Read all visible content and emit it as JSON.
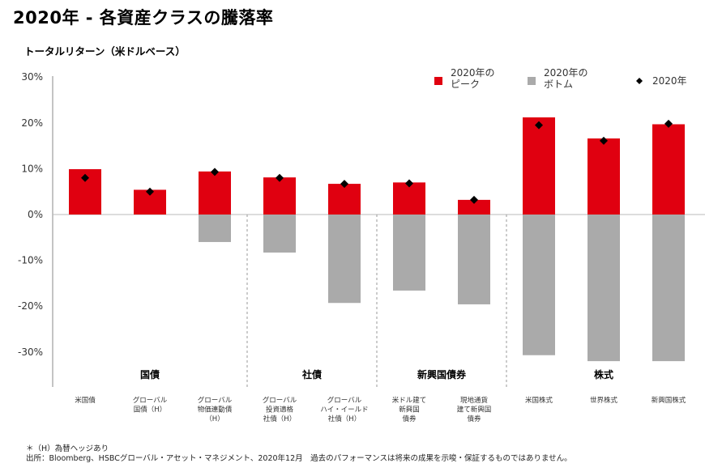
{
  "title": "2020年 - 各資産クラスの騰落率",
  "subtitle": "トータルリターン（米ドルベース）",
  "footnote": "＊（H）為替ヘッジあり",
  "source": "出所：Bloomberg、HSBCグローバル・アセット・マネジメント、2020年12月　過去のパフォーマンスは将来の成果を示唆・保証するものではありません。",
  "colors": {
    "peak": "#e00010",
    "bottom": "#aaaaaa",
    "marker": "#000000",
    "axis": "#888888",
    "divider": "#999999"
  },
  "chart_data": {
    "type": "bar",
    "ylabel": "トータルリターン（米ドルベース）",
    "ylim": [
      -0.38,
      0.3
    ],
    "yticks": [
      0.3,
      0.2,
      0.1,
      0.0,
      -0.1,
      -0.2,
      -0.3
    ],
    "ytick_labels": [
      "30%",
      "20%",
      "10%",
      "0%",
      "-10%",
      "-20%",
      "-30%"
    ],
    "legend_position": "top-right",
    "categories": [
      [
        "米国債"
      ],
      [
        "グローバル",
        "国債（H）"
      ],
      [
        "グローバル",
        "物価連動債",
        "（H）"
      ],
      [
        "グローバル",
        "投資適格",
        "社債（H）"
      ],
      [
        "グローバル",
        "ハイ・イールド",
        "社債（H）"
      ],
      [
        "米ドル建て",
        "新興国",
        "債券"
      ],
      [
        "現地通貨",
        "建て新興国",
        "債券"
      ],
      [
        "米国株式"
      ],
      [
        "世界株式"
      ],
      [
        "新興国株式"
      ]
    ],
    "groups": [
      {
        "name": "国債",
        "start": 0,
        "end": 2
      },
      {
        "name": "社債",
        "start": 3,
        "end": 4
      },
      {
        "name": "新興国債券",
        "start": 5,
        "end": 6
      },
      {
        "name": "株式",
        "start": 7,
        "end": 9
      }
    ],
    "series": [
      {
        "name": "2020年の\nピーク",
        "values": [
          0.099,
          0.054,
          0.094,
          0.081,
          0.067,
          0.07,
          0.032,
          0.212,
          0.166,
          0.197
        ]
      },
      {
        "name": "2020年の\nボトム",
        "values": [
          0.0,
          0.0,
          -0.06,
          -0.083,
          -0.193,
          -0.166,
          -0.196,
          -0.307,
          -0.32,
          -0.32
        ]
      },
      {
        "name": "2020年",
        "values": [
          0.08,
          0.05,
          0.093,
          0.08,
          0.067,
          0.068,
          0.032,
          0.195,
          0.161,
          0.198
        ]
      }
    ]
  }
}
